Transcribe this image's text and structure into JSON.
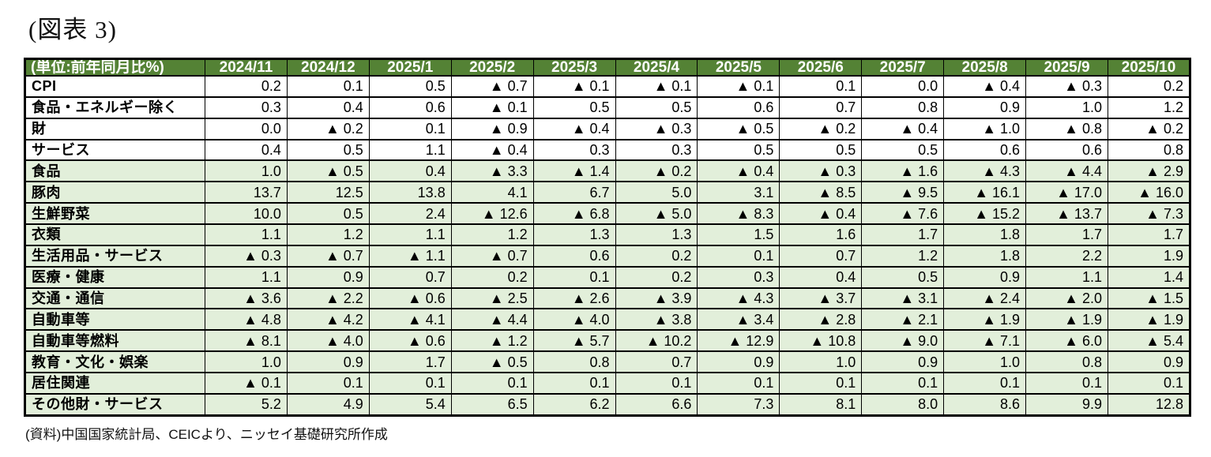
{
  "title": "(図表 3)",
  "source_note": "(資料)中国国家統計局、CEICより、ニッセイ基礎研究所作成",
  "colors": {
    "header_bg": "#548235",
    "header_text": "#ffffff",
    "shaded_row_bg": "#e2efda",
    "plain_row_bg": "#ffffff",
    "border": "#000000",
    "negative_marker": "#000000"
  },
  "negative_marker_glyph": "▲",
  "chart_data": {
    "type": "table",
    "unit_label": "(単位:前年同月比%)",
    "columns": [
      "2024/11",
      "2024/12",
      "2025/1",
      "2025/2",
      "2025/3",
      "2025/4",
      "2025/5",
      "2025/6",
      "2025/7",
      "2025/8",
      "2025/9",
      "2025/10"
    ],
    "rows": [
      {
        "label": "CPI",
        "indent": 0,
        "shaded": false,
        "values": [
          0.2,
          0.1,
          0.5,
          -0.7,
          -0.1,
          -0.1,
          -0.1,
          0.1,
          0.0,
          -0.4,
          -0.3,
          0.2
        ]
      },
      {
        "label": "食品・エネルギー除く",
        "indent": 1,
        "shaded": false,
        "values": [
          0.3,
          0.4,
          0.6,
          -0.1,
          0.5,
          0.5,
          0.6,
          0.7,
          0.8,
          0.9,
          1.0,
          1.2
        ]
      },
      {
        "label": "財",
        "indent": 1,
        "shaded": false,
        "values": [
          0.0,
          -0.2,
          0.1,
          -0.9,
          -0.4,
          -0.3,
          -0.5,
          -0.2,
          -0.4,
          -1.0,
          -0.8,
          -0.2
        ]
      },
      {
        "label": "サービス",
        "indent": 1,
        "shaded": false,
        "values": [
          0.4,
          0.5,
          1.1,
          -0.4,
          0.3,
          0.3,
          0.5,
          0.5,
          0.5,
          0.6,
          0.6,
          0.8
        ]
      },
      {
        "label": "食品",
        "indent": 1,
        "shaded": true,
        "values": [
          1.0,
          -0.5,
          0.4,
          -3.3,
          -1.4,
          -0.2,
          -0.4,
          -0.3,
          -1.6,
          -4.3,
          -4.4,
          -2.9
        ]
      },
      {
        "label": "豚肉",
        "indent": 2,
        "shaded": true,
        "values": [
          13.7,
          12.5,
          13.8,
          4.1,
          6.7,
          5.0,
          3.1,
          -8.5,
          -9.5,
          -16.1,
          -17.0,
          -16.0
        ]
      },
      {
        "label": "生鮮野菜",
        "indent": 2,
        "shaded": true,
        "values": [
          10.0,
          0.5,
          2.4,
          -12.6,
          -6.8,
          -5.0,
          -8.3,
          -0.4,
          -7.6,
          -15.2,
          -13.7,
          -7.3
        ]
      },
      {
        "label": "衣類",
        "indent": 1,
        "shaded": true,
        "values": [
          1.1,
          1.2,
          1.1,
          1.2,
          1.3,
          1.3,
          1.5,
          1.6,
          1.7,
          1.8,
          1.7,
          1.7
        ]
      },
      {
        "label": "生活用品・サービス",
        "indent": 1,
        "shaded": true,
        "values": [
          -0.3,
          -0.7,
          -1.1,
          -0.7,
          0.6,
          0.2,
          0.1,
          0.7,
          1.2,
          1.8,
          2.2,
          1.9
        ]
      },
      {
        "label": "医療・健康",
        "indent": 1,
        "shaded": true,
        "values": [
          1.1,
          0.9,
          0.7,
          0.2,
          0.1,
          0.2,
          0.3,
          0.4,
          0.5,
          0.9,
          1.1,
          1.4
        ]
      },
      {
        "label": "交通・通信",
        "indent": 1,
        "shaded": true,
        "values": [
          -3.6,
          -2.2,
          -0.6,
          -2.5,
          -2.6,
          -3.9,
          -4.3,
          -3.7,
          -3.1,
          -2.4,
          -2.0,
          -1.5
        ]
      },
      {
        "label": "自動車等",
        "indent": 2,
        "shaded": true,
        "values": [
          -4.8,
          -4.2,
          -4.1,
          -4.4,
          -4.0,
          -3.8,
          -3.4,
          -2.8,
          -2.1,
          -1.9,
          -1.9,
          -1.9
        ]
      },
      {
        "label": "自動車等燃料",
        "indent": 2,
        "shaded": true,
        "values": [
          -8.1,
          -4.0,
          -0.6,
          -1.2,
          -5.7,
          -10.2,
          -12.9,
          -10.8,
          -9.0,
          -7.1,
          -6.0,
          -5.4
        ]
      },
      {
        "label": "教育・文化・娯楽",
        "indent": 1,
        "shaded": true,
        "values": [
          1.0,
          0.9,
          1.7,
          -0.5,
          0.8,
          0.7,
          0.9,
          1.0,
          0.9,
          1.0,
          0.8,
          0.9
        ]
      },
      {
        "label": "居住関連",
        "indent": 1,
        "shaded": true,
        "values": [
          -0.1,
          0.1,
          0.1,
          0.1,
          0.1,
          0.1,
          0.1,
          0.1,
          0.1,
          0.1,
          0.1,
          0.1
        ]
      },
      {
        "label": "その他財・サービス",
        "indent": 1,
        "shaded": true,
        "values": [
          5.2,
          4.9,
          5.4,
          6.5,
          6.2,
          6.6,
          7.3,
          8.1,
          8.0,
          8.6,
          9.9,
          12.8
        ]
      }
    ]
  }
}
